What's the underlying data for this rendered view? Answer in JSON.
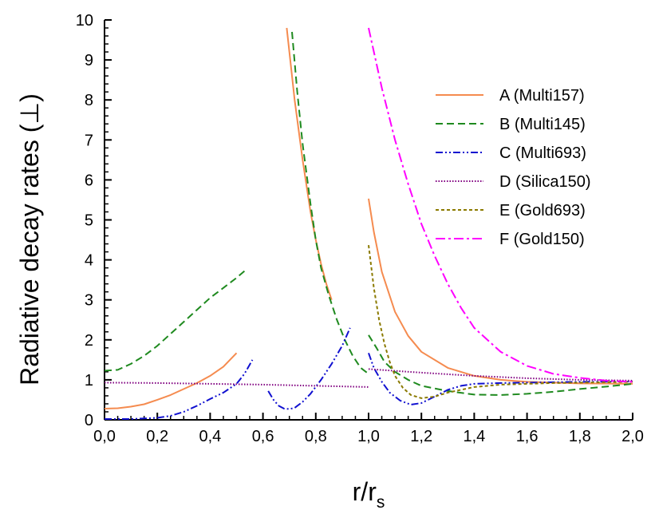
{
  "chart_data": {
    "type": "line",
    "title": "",
    "xlabel": "r/r",
    "xlabel_sub": "s",
    "ylabel": "Radiative decay rates (⊥)",
    "xlim": [
      0.0,
      2.0
    ],
    "ylim": [
      0,
      10
    ],
    "x_ticks": [
      "0,0",
      "0,2",
      "0,4",
      "0,6",
      "0,8",
      "1,0",
      "1,2",
      "1,4",
      "1,6",
      "1,8",
      "2,0"
    ],
    "y_ticks": [
      "0",
      "1",
      "2",
      "3",
      "4",
      "5",
      "6",
      "7",
      "8",
      "9",
      "10"
    ],
    "grid": false,
    "legend_position": "top-right",
    "series": [
      {
        "name": "A (Multi157)",
        "color": "#f58b4f",
        "dash": "solid",
        "segments": [
          [
            [
              0.0,
              0.28
            ],
            [
              0.05,
              0.29
            ],
            [
              0.1,
              0.33
            ],
            [
              0.15,
              0.39
            ],
            [
              0.2,
              0.5
            ],
            [
              0.25,
              0.62
            ],
            [
              0.3,
              0.77
            ],
            [
              0.35,
              0.92
            ],
            [
              0.4,
              1.1
            ],
            [
              0.45,
              1.33
            ],
            [
              0.5,
              1.67
            ]
          ],
          [
            [
              0.69,
              9.8
            ],
            [
              0.72,
              8.0
            ],
            [
              0.75,
              6.5
            ],
            [
              0.78,
              5.2
            ],
            [
              0.8,
              4.5
            ],
            [
              0.82,
              3.9
            ],
            [
              0.84,
              3.4
            ],
            [
              0.86,
              3.0
            ]
          ],
          [
            [
              1.0,
              5.53
            ],
            [
              1.02,
              4.7
            ],
            [
              1.05,
              3.7
            ],
            [
              1.1,
              2.7
            ],
            [
              1.15,
              2.1
            ],
            [
              1.2,
              1.7
            ],
            [
              1.3,
              1.3
            ],
            [
              1.4,
              1.1
            ],
            [
              1.5,
              1.0
            ],
            [
              1.6,
              0.95
            ],
            [
              1.8,
              0.91
            ],
            [
              2.0,
              0.9
            ]
          ]
        ]
      },
      {
        "name": "B (Multi145)",
        "color": "#1f8a1f",
        "dash": "dashed",
        "segments": [
          [
            [
              0.0,
              1.23
            ],
            [
              0.05,
              1.25
            ],
            [
              0.1,
              1.4
            ],
            [
              0.15,
              1.6
            ],
            [
              0.2,
              1.85
            ],
            [
              0.25,
              2.15
            ],
            [
              0.3,
              2.45
            ],
            [
              0.35,
              2.75
            ],
            [
              0.4,
              3.05
            ],
            [
              0.45,
              3.3
            ],
            [
              0.5,
              3.55
            ],
            [
              0.53,
              3.72
            ]
          ],
          [
            [
              0.71,
              9.7
            ],
            [
              0.73,
              8.2
            ],
            [
              0.75,
              6.9
            ],
            [
              0.78,
              5.4
            ],
            [
              0.8,
              4.5
            ],
            [
              0.82,
              3.8
            ],
            [
              0.85,
              3.1
            ],
            [
              0.88,
              2.5
            ],
            [
              0.91,
              2.0
            ],
            [
              0.94,
              1.6
            ],
            [
              0.97,
              1.3
            ],
            [
              1.0,
              1.15
            ]
          ],
          [
            [
              1.0,
              2.12
            ],
            [
              1.03,
              1.8
            ],
            [
              1.06,
              1.45
            ],
            [
              1.1,
              1.2
            ],
            [
              1.15,
              1.0
            ],
            [
              1.2,
              0.85
            ],
            [
              1.3,
              0.72
            ],
            [
              1.4,
              0.63
            ],
            [
              1.5,
              0.62
            ],
            [
              1.6,
              0.65
            ],
            [
              1.7,
              0.7
            ],
            [
              1.8,
              0.77
            ],
            [
              1.9,
              0.83
            ],
            [
              2.0,
              0.9
            ]
          ]
        ]
      },
      {
        "name": "C (Multi693)",
        "color": "#1010d0",
        "dash": "dashdotdot",
        "segments": [
          [
            [
              0.0,
              0.02
            ],
            [
              0.1,
              0.02
            ],
            [
              0.2,
              0.05
            ],
            [
              0.25,
              0.1
            ],
            [
              0.3,
              0.2
            ],
            [
              0.35,
              0.35
            ],
            [
              0.4,
              0.52
            ],
            [
              0.45,
              0.68
            ],
            [
              0.5,
              0.9
            ],
            [
              0.53,
              1.15
            ],
            [
              0.56,
              1.5
            ]
          ],
          [
            [
              0.62,
              0.72
            ],
            [
              0.64,
              0.5
            ],
            [
              0.66,
              0.35
            ],
            [
              0.68,
              0.28
            ],
            [
              0.7,
              0.27
            ],
            [
              0.72,
              0.3
            ],
            [
              0.75,
              0.45
            ],
            [
              0.78,
              0.65
            ],
            [
              0.82,
              1.0
            ],
            [
              0.86,
              1.4
            ],
            [
              0.9,
              1.85
            ],
            [
              0.93,
              2.3
            ]
          ],
          [
            [
              1.0,
              1.67
            ],
            [
              1.02,
              1.3
            ],
            [
              1.05,
              0.95
            ],
            [
              1.08,
              0.68
            ],
            [
              1.12,
              0.48
            ],
            [
              1.16,
              0.38
            ],
            [
              1.2,
              0.42
            ],
            [
              1.25,
              0.58
            ],
            [
              1.3,
              0.75
            ],
            [
              1.35,
              0.85
            ],
            [
              1.4,
              0.9
            ],
            [
              1.5,
              0.92
            ],
            [
              1.6,
              0.93
            ],
            [
              1.8,
              0.95
            ],
            [
              2.0,
              0.96
            ]
          ]
        ]
      },
      {
        "name": "D (Silica150)",
        "color": "#800080",
        "dash": "dotted",
        "segments": [
          [
            [
              0.0,
              0.93
            ],
            [
              0.2,
              0.92
            ],
            [
              0.4,
              0.9
            ],
            [
              0.6,
              0.88
            ],
            [
              0.8,
              0.85
            ],
            [
              1.0,
              0.82
            ]
          ],
          [
            [
              1.0,
              1.27
            ],
            [
              1.2,
              1.18
            ],
            [
              1.4,
              1.1
            ],
            [
              1.6,
              1.04
            ],
            [
              1.8,
              1.0
            ],
            [
              2.0,
              0.98
            ]
          ]
        ]
      },
      {
        "name": "E (Gold693)",
        "color": "#8b7a00",
        "dash": "shortdash",
        "segments": [
          [
            [
              1.0,
              4.37
            ],
            [
              1.02,
              3.3
            ],
            [
              1.04,
              2.5
            ],
            [
              1.06,
              1.9
            ],
            [
              1.08,
              1.45
            ],
            [
              1.1,
              1.1
            ],
            [
              1.13,
              0.8
            ],
            [
              1.16,
              0.62
            ],
            [
              1.2,
              0.54
            ],
            [
              1.25,
              0.58
            ],
            [
              1.3,
              0.68
            ],
            [
              1.4,
              0.82
            ],
            [
              1.5,
              0.88
            ],
            [
              1.7,
              0.92
            ],
            [
              2.0,
              0.95
            ]
          ]
        ]
      },
      {
        "name": "F (Gold150)",
        "color": "#ff00ff",
        "dash": "dashdot",
        "segments": [
          [
            [
              1.0,
              9.8
            ],
            [
              1.05,
              8.3
            ],
            [
              1.1,
              7.0
            ],
            [
              1.15,
              5.9
            ],
            [
              1.2,
              4.9
            ],
            [
              1.25,
              4.1
            ],
            [
              1.3,
              3.4
            ],
            [
              1.35,
              2.8
            ],
            [
              1.4,
              2.3
            ],
            [
              1.5,
              1.7
            ],
            [
              1.6,
              1.35
            ],
            [
              1.7,
              1.15
            ],
            [
              1.8,
              1.05
            ],
            [
              1.9,
              0.98
            ],
            [
              2.0,
              0.95
            ]
          ]
        ]
      }
    ]
  }
}
